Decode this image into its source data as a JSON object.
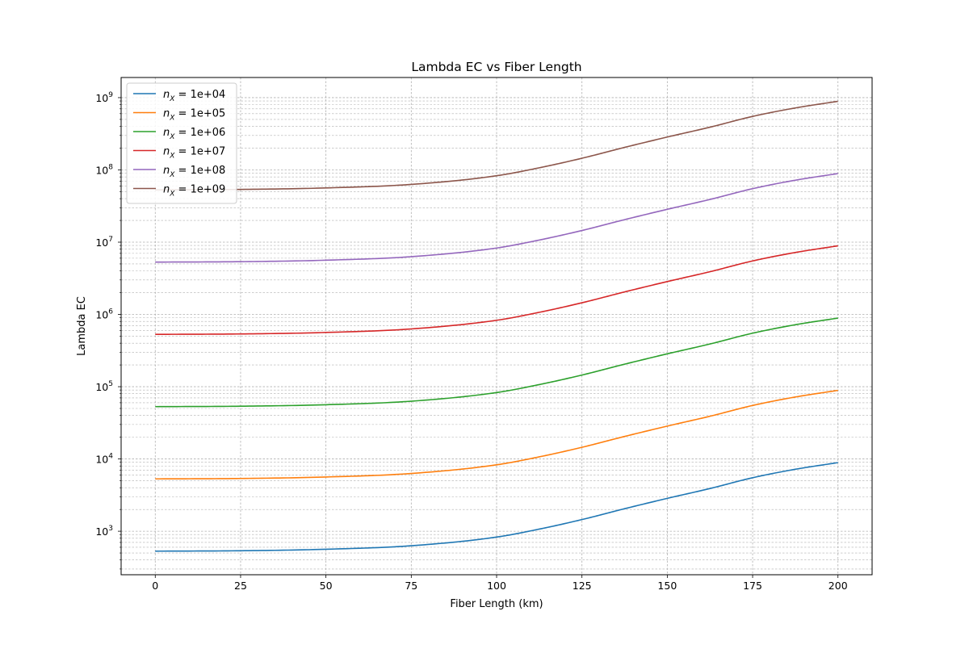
{
  "chart_data": {
    "type": "line",
    "title": "Lambda EC vs Fiber Length",
    "xlabel": "Fiber Length (km)",
    "ylabel": "Lambda EC",
    "xlim": [
      -10,
      210
    ],
    "ylim": [
      250,
      1900000000
    ],
    "yscale": "log",
    "grid": true,
    "legend_position": "upper-left",
    "x_ticks": [
      0,
      25,
      50,
      75,
      100,
      125,
      150,
      175,
      200
    ],
    "y_ticks": [
      {
        "value": 1000,
        "base": "10",
        "exp": "3"
      },
      {
        "value": 10000,
        "base": "10",
        "exp": "4"
      },
      {
        "value": 100000,
        "base": "10",
        "exp": "5"
      },
      {
        "value": 1000000,
        "base": "10",
        "exp": "6"
      },
      {
        "value": 10000000,
        "base": "10",
        "exp": "7"
      },
      {
        "value": 100000000,
        "base": "10",
        "exp": "8"
      },
      {
        "value": 1000000000,
        "base": "10",
        "exp": "9"
      }
    ],
    "x": [
      0,
      25,
      50,
      75,
      100,
      112.5,
      125,
      137.5,
      150,
      162.5,
      175,
      187.5,
      200
    ],
    "series": [
      {
        "name": "1e+04",
        "color": "#1f77b4",
        "values": [
          530,
          537,
          563,
          630,
          830,
          1070,
          1450,
          2050,
          2850,
          3900,
          5500,
          7200,
          8900
        ]
      },
      {
        "name": "1e+05",
        "color": "#ff7f0e",
        "values": [
          5300,
          5370,
          5630,
          6300,
          8300,
          10700,
          14500,
          20500,
          28500,
          39000,
          55000,
          72000,
          89000
        ]
      },
      {
        "name": "1e+06",
        "color": "#2ca02c",
        "values": [
          53000,
          53700,
          56300,
          63000,
          83000,
          107000,
          145000,
          205000,
          285000,
          390000,
          550000,
          720000,
          890000
        ]
      },
      {
        "name": "1e+07",
        "color": "#d62728",
        "values": [
          530000,
          537000,
          563000,
          630000,
          830000,
          1070000,
          1450000,
          2050000,
          2850000,
          3900000,
          5500000,
          7200000,
          8900000
        ]
      },
      {
        "name": "1e+08",
        "color": "#9467bd",
        "values": [
          5300000,
          5370000,
          5630000,
          6300000,
          8300000,
          10700000,
          14500000,
          20500000,
          28500000,
          39000000,
          55000000,
          72000000,
          89000000
        ]
      },
      {
        "name": "1e+09",
        "color": "#8c564b",
        "values": [
          53000000,
          53700000,
          56300000,
          63000000,
          83000000,
          107000000,
          145000000,
          205000000,
          285000000,
          390000000,
          550000000,
          720000000,
          890000000
        ]
      }
    ],
    "legend_symbol": "n",
    "legend_subscript": "X",
    "legend_equals": " = "
  }
}
